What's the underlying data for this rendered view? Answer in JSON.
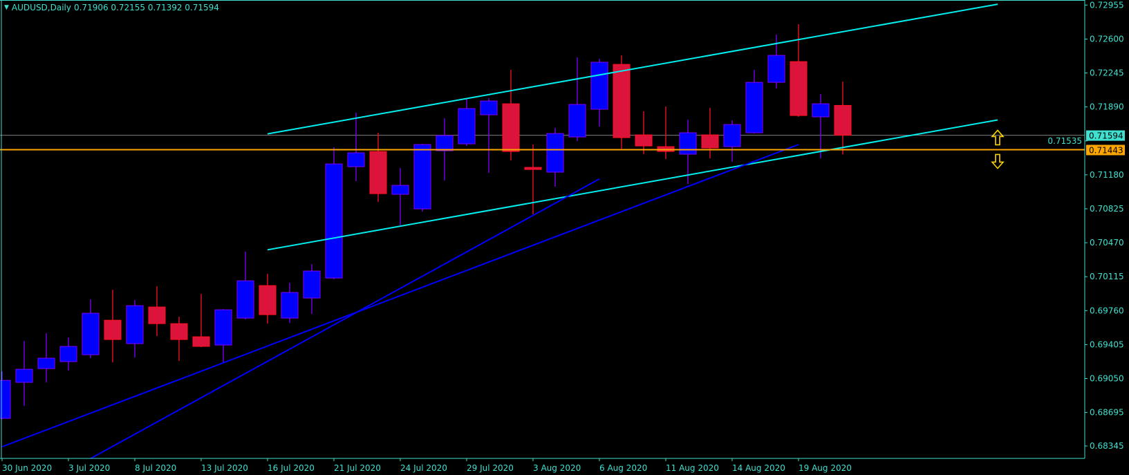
{
  "header": {
    "symbol_timeframe": "AUDUSD,Daily",
    "ohlc_text": "0.71906 0.72155 0.71392 0.71594",
    "menu_icon": "triangle-down-icon"
  },
  "colors": {
    "background": "#000000",
    "axis": "#3fe0d0",
    "bull_body": "#0000ff",
    "bull_border": "#8000ff",
    "bear_body": "#dc143c",
    "bear_border": "#ff1020",
    "channel": "#00f0f0",
    "trend": "#0000ff",
    "bid_line": "#808080",
    "level_line": "#ffa500",
    "arrow": "#ffd700"
  },
  "chart_data": {
    "type": "candlestick",
    "title": "AUDUSD,Daily",
    "ylim": [
      0.68215,
      0.73008
    ],
    "grid": false,
    "price_ticks": [
      "0.72955",
      "0.72600",
      "0.72245",
      "0.71890",
      "0.71535",
      "0.71180",
      "0.70825",
      "0.70470",
      "0.70115",
      "0.69760",
      "0.69405",
      "0.69050",
      "0.68695",
      "0.68345"
    ],
    "date_ticks": [
      "30 Jun 2020",
      "3 Jul 2020",
      "8 Jul 2020",
      "13 Jul 2020",
      "16 Jul 2020",
      "21 Jul 2020",
      "24 Jul 2020",
      "29 Jul 2020",
      "3 Aug 2020",
      "6 Aug 2020",
      "11 Aug 2020",
      "14 Aug 2020",
      "19 Aug 2020"
    ],
    "candles": [
      {
        "date": "30 Jun 2020",
        "o": 0.68634,
        "h": 0.69125,
        "l": 0.68625,
        "c": 0.69031
      },
      {
        "date": "1 Jul 2020",
        "o": 0.6901,
        "h": 0.69443,
        "l": 0.68764,
        "c": 0.69147
      },
      {
        "date": "2 Jul 2020",
        "o": 0.69154,
        "h": 0.69523,
        "l": 0.6901,
        "c": 0.69263
      },
      {
        "date": "3 Jul 2020",
        "o": 0.69227,
        "h": 0.6948,
        "l": 0.69133,
        "c": 0.69386
      },
      {
        "date": "6 Jul 2020",
        "o": 0.69299,
        "h": 0.69877,
        "l": 0.69263,
        "c": 0.69733
      },
      {
        "date": "7 Jul 2020",
        "o": 0.6966,
        "h": 0.69978,
        "l": 0.69219,
        "c": 0.69458
      },
      {
        "date": "8 Jul 2020",
        "o": 0.69415,
        "h": 0.6987,
        "l": 0.6927,
        "c": 0.69812
      },
      {
        "date": "9 Jul 2020",
        "o": 0.69798,
        "h": 0.70015,
        "l": 0.69494,
        "c": 0.69624
      },
      {
        "date": "10 Jul 2020",
        "o": 0.69624,
        "h": 0.69696,
        "l": 0.69234,
        "c": 0.69458
      },
      {
        "date": "13 Jul 2020",
        "o": 0.69487,
        "h": 0.69935,
        "l": 0.69378,
        "c": 0.69386
      },
      {
        "date": "14 Jul 2020",
        "o": 0.694,
        "h": 0.69776,
        "l": 0.69219,
        "c": 0.69769
      },
      {
        "date": "15 Jul 2020",
        "o": 0.69682,
        "h": 0.70376,
        "l": 0.69668,
        "c": 0.70072
      },
      {
        "date": "16 Jul 2020",
        "o": 0.70022,
        "h": 0.70145,
        "l": 0.69624,
        "c": 0.69718
      },
      {
        "date": "17 Jul 2020",
        "o": 0.69682,
        "h": 0.70051,
        "l": 0.69631,
        "c": 0.6995
      },
      {
        "date": "20 Jul 2020",
        "o": 0.69892,
        "h": 0.70246,
        "l": 0.69725,
        "c": 0.70174
      },
      {
        "date": "21 Jul 2020",
        "o": 0.70101,
        "h": 0.71468,
        "l": 0.70087,
        "c": 0.71294
      },
      {
        "date": "22 Jul 2020",
        "o": 0.71265,
        "h": 0.71829,
        "l": 0.71114,
        "c": 0.7141
      },
      {
        "date": "23 Jul 2020",
        "o": 0.71424,
        "h": 0.7162,
        "l": 0.70897,
        "c": 0.70983
      },
      {
        "date": "24 Jul 2020",
        "o": 0.70976,
        "h": 0.71251,
        "l": 0.70651,
        "c": 0.7107
      },
      {
        "date": "27 Jul 2020",
        "o": 0.70824,
        "h": 0.71504,
        "l": 0.70795,
        "c": 0.71497
      },
      {
        "date": "28 Jul 2020",
        "o": 0.71432,
        "h": 0.71771,
        "l": 0.71121,
        "c": 0.71591
      },
      {
        "date": "29 Jul 2020",
        "o": 0.71504,
        "h": 0.71974,
        "l": 0.71482,
        "c": 0.71873
      },
      {
        "date": "30 Jul 2020",
        "o": 0.71808,
        "h": 0.71981,
        "l": 0.712,
        "c": 0.71952
      },
      {
        "date": "31 Jul 2020",
        "o": 0.71923,
        "h": 0.72278,
        "l": 0.7133,
        "c": 0.71424
      },
      {
        "date": "3 Aug 2020",
        "o": 0.71258,
        "h": 0.71497,
        "l": 0.70767,
        "c": 0.71236
      },
      {
        "date": "4 Aug 2020",
        "o": 0.71208,
        "h": 0.7167,
        "l": 0.71056,
        "c": 0.71612
      },
      {
        "date": "5 Aug 2020",
        "o": 0.71576,
        "h": 0.72408,
        "l": 0.71533,
        "c": 0.71916
      },
      {
        "date": "6 Aug 2020",
        "o": 0.71866,
        "h": 0.72393,
        "l": 0.71685,
        "c": 0.72357
      },
      {
        "date": "7 Aug 2020",
        "o": 0.72335,
        "h": 0.72429,
        "l": 0.71453,
        "c": 0.71569
      },
      {
        "date": "10 Aug 2020",
        "o": 0.71598,
        "h": 0.71844,
        "l": 0.71396,
        "c": 0.71482
      },
      {
        "date": "11 Aug 2020",
        "o": 0.71475,
        "h": 0.71894,
        "l": 0.71345,
        "c": 0.71424
      },
      {
        "date": "12 Aug 2020",
        "o": 0.71396,
        "h": 0.71757,
        "l": 0.71085,
        "c": 0.7162
      },
      {
        "date": "13 Aug 2020",
        "o": 0.71598,
        "h": 0.7188,
        "l": 0.71352,
        "c": 0.71461
      },
      {
        "date": "14 Aug 2020",
        "o": 0.71475,
        "h": 0.7175,
        "l": 0.71316,
        "c": 0.71706
      },
      {
        "date": "17 Aug 2020",
        "o": 0.7162,
        "h": 0.72278,
        "l": 0.71612,
        "c": 0.72147
      },
      {
        "date": "18 Aug 2020",
        "o": 0.72147,
        "h": 0.72646,
        "l": 0.72082,
        "c": 0.72429
      },
      {
        "date": "19 Aug 2020",
        "o": 0.72364,
        "h": 0.72755,
        "l": 0.71786,
        "c": 0.718
      },
      {
        "date": "20 Aug 2020",
        "o": 0.71786,
        "h": 0.72025,
        "l": 0.71352,
        "c": 0.71923
      },
      {
        "date": "21 Aug 2020",
        "o": 0.71906,
        "h": 0.72155,
        "l": 0.71392,
        "c": 0.71594
      }
    ],
    "trendlines": [
      {
        "name": "upper-channel",
        "color": "#00f0f0",
        "from": [
          "16 Jul 2020",
          0.71608
        ],
        "to": [
          "1 Sep 2020",
          0.72964
        ]
      },
      {
        "name": "lower-channel",
        "color": "#00f0f0",
        "from": [
          "16 Jul 2020",
          0.70396
        ],
        "to": [
          "1 Sep 2020",
          0.71754
        ]
      },
      {
        "name": "trendline-steep",
        "color": "#0000ff",
        "from": [
          "6 Jul 2020",
          0.68214
        ],
        "to": [
          "6 Aug 2020",
          0.71137
        ]
      },
      {
        "name": "trendline-shallow",
        "color": "#0000ff",
        "from": [
          "30 Jun 2020",
          0.68337
        ],
        "to": [
          "19 Aug 2020",
          0.71497
        ]
      }
    ],
    "bid_price": "0.71594",
    "level_price": "0.71443",
    "arrows": [
      {
        "type": "up",
        "date": "1 Sep 2020",
        "price": 0.71443
      },
      {
        "type": "down",
        "date": "1 Sep 2020",
        "price": 0.71443
      }
    ]
  }
}
